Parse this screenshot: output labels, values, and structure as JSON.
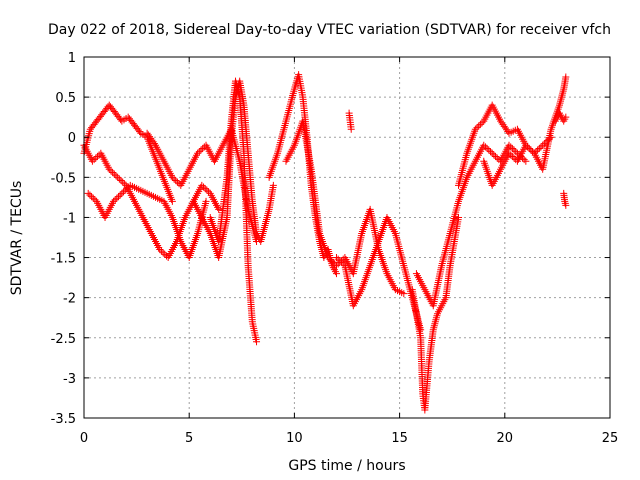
{
  "chart_data": {
    "type": "scatter",
    "title": "Day 022 of 2018, Sidereal Day-to-day VTEC variation (SDTVAR) for receiver vfch",
    "xlabel": "GPS time / hours",
    "ylabel": "SDTVAR / TECUs",
    "xlim": [
      0,
      25
    ],
    "ylim": [
      -3.5,
      1
    ],
    "xticks": [
      0,
      5,
      10,
      15,
      20,
      25
    ],
    "xtick_labels": [
      "0",
      "5",
      "10",
      "15",
      "20",
      "25"
    ],
    "yticks": [
      -3.5,
      -3,
      -2.5,
      -2,
      -1.5,
      -1,
      -0.5,
      0,
      0.5,
      1
    ],
    "ytick_labels": [
      "-3.5",
      "-3",
      "-2.5",
      "-2",
      "-1.5",
      "-1",
      "-0.5",
      "0",
      "0.5",
      "1"
    ],
    "grid": true,
    "marker": "+",
    "color": "#ff0000",
    "tracks": [
      {
        "x": [
          0.0,
          0.3,
          0.6,
          0.9,
          1.2,
          1.5,
          1.8,
          2.1,
          2.4,
          2.7,
          3.0,
          3.3,
          3.6,
          3.9,
          4.2
        ],
        "y": [
          -0.2,
          0.1,
          0.2,
          0.3,
          0.4,
          0.3,
          0.2,
          0.25,
          0.15,
          0.05,
          0.0,
          -0.2,
          -0.4,
          -0.6,
          -0.8
        ]
      },
      {
        "x": [
          0.0,
          0.4,
          0.8,
          1.2,
          1.6,
          2.0,
          2.4,
          2.8,
          3.2,
          3.6,
          4.0,
          4.4,
          4.8,
          5.2,
          5.6,
          6.0,
          6.4
        ],
        "y": [
          -0.1,
          -0.3,
          -0.2,
          -0.4,
          -0.5,
          -0.6,
          -0.8,
          -1.0,
          -1.2,
          -1.4,
          -1.5,
          -1.3,
          -1.0,
          -0.8,
          -0.6,
          -0.7,
          -0.9
        ]
      },
      {
        "x": [
          0.2,
          0.6,
          1.0,
          1.4,
          1.8,
          2.2,
          2.6,
          3.0,
          3.4,
          3.8,
          4.2,
          4.6,
          5.0,
          5.4,
          5.8
        ],
        "y": [
          -0.7,
          -0.8,
          -1.0,
          -0.8,
          -0.7,
          -0.6,
          -0.65,
          -0.7,
          -0.75,
          -0.8,
          -1.0,
          -1.3,
          -1.5,
          -1.2,
          -0.8
        ]
      },
      {
        "x": [
          3.0,
          3.4,
          3.8,
          4.2,
          4.6,
          5.0,
          5.4,
          5.8,
          6.2,
          6.6,
          7.0,
          7.4,
          7.8,
          8.2
        ],
        "y": [
          0.05,
          -0.1,
          -0.3,
          -0.5,
          -0.6,
          -0.4,
          -0.2,
          -0.1,
          -0.3,
          -0.1,
          0.1,
          -0.3,
          -0.9,
          -1.3
        ]
      },
      {
        "x": [
          5.2,
          5.6,
          6.0,
          6.4,
          6.8,
          7.0,
          7.2,
          7.4,
          7.6,
          7.8,
          8.0,
          8.2,
          8.4,
          8.6,
          8.8,
          9.0
        ],
        "y": [
          -0.8,
          -1.0,
          -1.2,
          -1.5,
          -1.0,
          0.0,
          0.5,
          0.7,
          0.4,
          -0.2,
          -0.8,
          -1.2,
          -1.3,
          -1.1,
          -0.9,
          -0.6
        ]
      },
      {
        "x": [
          6.0,
          6.4,
          6.8,
          7.0,
          7.2,
          7.4,
          7.6,
          7.8,
          8.0,
          8.2
        ],
        "y": [
          -1.0,
          -1.3,
          -0.5,
          0.2,
          0.7,
          0.5,
          -0.2,
          -1.6,
          -2.3,
          -2.55
        ]
      },
      {
        "x": [
          8.8,
          9.2,
          9.6,
          10.0,
          10.2,
          10.4,
          10.6,
          10.8,
          11.0,
          11.2,
          11.4,
          11.6,
          11.8,
          12.0
        ],
        "y": [
          -0.5,
          -0.2,
          0.2,
          0.6,
          0.78,
          0.5,
          0.0,
          -0.6,
          -1.0,
          -1.3,
          -1.5,
          -1.4,
          -1.6,
          -1.7
        ]
      },
      {
        "x": [
          9.6,
          10.0,
          10.4,
          10.8,
          11.2,
          11.6,
          12.0,
          12.4,
          12.8,
          13.2,
          13.6,
          14.0,
          14.4,
          14.8,
          15.2
        ],
        "y": [
          -0.3,
          -0.1,
          0.2,
          -0.4,
          -1.2,
          -1.5,
          -1.6,
          -1.5,
          -1.7,
          -1.2,
          -0.9,
          -1.4,
          -1.7,
          -1.9,
          -1.95
        ]
      },
      {
        "x": [
          12.0,
          12.4,
          12.8,
          13.2,
          13.6,
          14.0,
          14.4,
          14.8,
          15.2,
          15.6,
          16.0
        ],
        "y": [
          -1.5,
          -1.6,
          -2.1,
          -1.9,
          -1.6,
          -1.3,
          -1.0,
          -1.2,
          -1.6,
          -2.0,
          -2.4
        ]
      },
      {
        "x": [
          12.6,
          12.7
        ],
        "y": [
          0.3,
          0.1
        ]
      },
      {
        "x": [
          15.6,
          15.8,
          16.0,
          16.1,
          16.2,
          16.4,
          16.6,
          16.8,
          17.0,
          17.2,
          17.4,
          17.6,
          17.8
        ],
        "y": [
          -1.9,
          -2.2,
          -2.5,
          -3.2,
          -3.4,
          -2.8,
          -2.4,
          -2.2,
          -2.1,
          -2.0,
          -1.6,
          -1.3,
          -1.0
        ]
      },
      {
        "x": [
          15.8,
          16.2,
          16.6,
          17.0,
          17.4,
          17.8,
          18.2,
          18.6,
          19.0,
          19.4,
          19.8,
          20.2,
          20.6,
          21.0
        ],
        "y": [
          -1.7,
          -1.9,
          -2.1,
          -1.6,
          -1.2,
          -0.8,
          -0.5,
          -0.3,
          -0.1,
          -0.2,
          -0.3,
          -0.1,
          -0.2,
          -0.3
        ]
      },
      {
        "x": [
          17.8,
          18.2,
          18.6,
          19.0,
          19.4,
          19.8,
          20.2,
          20.6,
          21.0,
          21.4,
          21.8,
          22.2
        ],
        "y": [
          -0.6,
          -0.2,
          0.1,
          0.2,
          0.4,
          0.2,
          0.05,
          0.1,
          -0.1,
          -0.2,
          -0.1,
          0.0
        ]
      },
      {
        "x": [
          19.0,
          19.4,
          19.8,
          20.2,
          20.6,
          21.0,
          21.4,
          21.8,
          22.2,
          22.6,
          22.8,
          22.9
        ],
        "y": [
          -0.3,
          -0.6,
          -0.4,
          -0.2,
          -0.3,
          -0.1,
          -0.2,
          -0.4,
          0.1,
          0.4,
          0.6,
          0.75
        ]
      },
      {
        "x": [
          22.4,
          22.6,
          22.8,
          22.9
        ],
        "y": [
          0.2,
          0.3,
          0.2,
          0.25
        ]
      },
      {
        "x": [
          22.8,
          22.85,
          22.9
        ],
        "y": [
          -0.7,
          -0.8,
          -0.85
        ]
      }
    ]
  }
}
